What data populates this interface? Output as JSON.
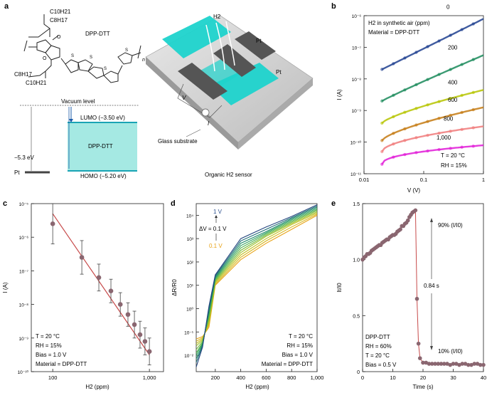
{
  "panel_a": {
    "label": "a",
    "molecule_name": "DPP-DTT",
    "side_chain_1": "C10H21",
    "side_chain_2": "C8H17",
    "subscript_n": "n",
    "vacuum_level": "Vacuum level",
    "lumo": "LUMO (−3.50 eV)",
    "homo": "HOMO (−5.20 eV)",
    "pt_workfunction": "−5.3 eV",
    "pt_label": "Pt",
    "box_label": "DPP-DTT",
    "device_h2": "H2",
    "device_pt_top": "Pt",
    "device_pt_right": "Pt",
    "device_v": "V",
    "device_i": "I",
    "glass_substrate": "Glass substrate",
    "sensor_caption": "Organic H2 sensor"
  },
  "chart_data": [
    {
      "panel": "b",
      "type": "scatter",
      "title_line1": "H2 in synthetic air (ppm)",
      "title_line2": "Material = DPP-DTT",
      "xlabel": "V (V)",
      "ylabel": "I (A)",
      "xscale": "log",
      "yscale": "log",
      "xlim": [
        0.01,
        1
      ],
      "ylim_exp": [
        -11,
        -6
      ],
      "x_ticks": [
        "0.01",
        "0.1",
        "1"
      ],
      "y_ticks": [
        "10⁻¹¹",
        "10⁻¹⁰",
        "10⁻⁹",
        "10⁻⁸",
        "10⁻⁷",
        "10⁻⁶"
      ],
      "annotation_T": "T = 20 °C",
      "annotation_RH": "RH = 15%",
      "series": [
        {
          "name": "0",
          "color": "#1f3f8f",
          "i_at_0p02V_exp": -7.7,
          "i_at_1V_exp": -6.1,
          "slope": 1.0
        },
        {
          "name": "200",
          "color": "#1a8a5a",
          "i_at_0p02V_exp": -8.7,
          "i_at_1V_exp": -7.25,
          "slope": 0.95
        },
        {
          "name": "400",
          "color": "#b6c400",
          "i_at_0p02V_exp": -9.4,
          "i_at_1V_exp": -8.35,
          "slope": 0.75
        },
        {
          "name": "600",
          "color": "#c47a12",
          "i_at_0p02V_exp": -9.95,
          "i_at_1V_exp": -8.9,
          "slope": 0.7
        },
        {
          "name": "800",
          "color": "#f07a7a",
          "i_at_0p02V_exp": -10.3,
          "i_at_1V_exp": -9.5,
          "slope": 0.55
        },
        {
          "name": "1,000",
          "color": "#e11ad7",
          "i_at_0p02V_exp": -10.7,
          "i_at_1V_exp": -10.1,
          "slope": 0.45
        }
      ]
    },
    {
      "panel": "c",
      "type": "scatter",
      "xlabel": "H2 (ppm)",
      "ylabel": "I (A)",
      "xscale": "log",
      "yscale": "log",
      "xlim": [
        60,
        1400
      ],
      "ylim_exp": [
        -10,
        -5
      ],
      "x_ticks": [
        "100",
        "1,000"
      ],
      "y_ticks": [
        "10⁻¹⁰",
        "10⁻⁹",
        "10⁻⁸",
        "10⁻⁷",
        "10⁻⁶",
        "10⁻⁵"
      ],
      "x": [
        100,
        200,
        300,
        400,
        500,
        600,
        700,
        800,
        900,
        1000
      ],
      "y_exp": [
        -5.6,
        -6.6,
        -7.2,
        -7.6,
        -8.0,
        -8.3,
        -8.6,
        -8.9,
        -9.1,
        -9.4
      ],
      "err_exp": [
        0.6,
        0.5,
        0.4,
        0.35,
        0.35,
        0.35,
        0.4,
        0.4,
        0.4,
        0.4
      ],
      "fit_exp": [
        [
          100,
          -5.3
        ],
        [
          1000,
          -9.5
        ]
      ],
      "annotations": [
        "T = 20 °C",
        "RH = 15%",
        "Bias = 1.0 V",
        "Material = DPP-DTT"
      ]
    },
    {
      "panel": "d",
      "type": "line",
      "xlabel": "H2 (ppm)",
      "ylabel": "ΔR/R0",
      "yscale": "log",
      "xlim": [
        50,
        1000
      ],
      "ylim_exp": [
        -2.7,
        4.5
      ],
      "x_ticks": [
        "200",
        "400",
        "600",
        "800",
        "1,000"
      ],
      "y_ticks": [
        "10⁻²",
        "10⁻¹",
        "10⁰",
        "10¹",
        "10²",
        "10³",
        "10⁴"
      ],
      "legend_top": "1 V",
      "legend_step": "ΔV = 0.1 V",
      "legend_bottom": "0.1 V",
      "annotations": [
        "T = 20 °C",
        "RH = 15%",
        "Bias = 1.0 V",
        "Material = DPP-DTT"
      ],
      "x": [
        50,
        100,
        150,
        200,
        400,
        600,
        800,
        1000
      ],
      "series": [
        {
          "name": "0.1 V",
          "color": "#e8a317",
          "y_exp": [
            -1.3,
            -1.2,
            -0.8,
            1.0,
            2.1,
            2.8,
            3.4,
            4.0
          ]
        },
        {
          "name": "0.2 V",
          "color": "#d6b51a",
          "y_exp": [
            -1.4,
            -1.25,
            -0.7,
            1.05,
            2.2,
            2.9,
            3.5,
            4.05
          ]
        },
        {
          "name": "0.3 V",
          "color": "#c3c01f",
          "y_exp": [
            -1.5,
            -1.3,
            -0.6,
            1.1,
            2.3,
            3.0,
            3.6,
            4.1
          ]
        },
        {
          "name": "0.4 V",
          "color": "#9fc02a",
          "y_exp": [
            -1.6,
            -1.35,
            -0.5,
            1.15,
            2.4,
            3.1,
            3.65,
            4.15
          ]
        },
        {
          "name": "0.5 V",
          "color": "#74b93a",
          "y_exp": [
            -1.75,
            -1.4,
            -0.4,
            1.2,
            2.5,
            3.15,
            3.7,
            4.2
          ]
        },
        {
          "name": "0.6 V",
          "color": "#4fb04c",
          "y_exp": [
            -1.9,
            -1.45,
            -0.3,
            1.25,
            2.6,
            3.2,
            3.75,
            4.25
          ]
        },
        {
          "name": "0.7 V",
          "color": "#2fa05e",
          "y_exp": [
            -2.0,
            -1.5,
            -0.2,
            1.3,
            2.7,
            3.25,
            3.8,
            4.3
          ]
        },
        {
          "name": "0.8 V",
          "color": "#1e8a6a",
          "y_exp": [
            -2.15,
            -1.55,
            -0.1,
            1.35,
            2.8,
            3.3,
            3.85,
            4.35
          ]
        },
        {
          "name": "0.9 V",
          "color": "#1b6a74",
          "y_exp": [
            -2.3,
            -1.6,
            0.0,
            1.4,
            2.9,
            3.4,
            3.9,
            4.4
          ]
        },
        {
          "name": "1 V",
          "color": "#23457e",
          "y_exp": [
            -2.5,
            -1.65,
            0.1,
            1.45,
            3.0,
            3.5,
            3.95,
            4.45
          ]
        }
      ]
    },
    {
      "panel": "e",
      "type": "line",
      "xlabel": "Time (s)",
      "ylabel": "It/I0",
      "xlim": [
        0,
        40
      ],
      "ylim": [
        0,
        1.5
      ],
      "x_ticks": [
        "0",
        "10",
        "20",
        "30",
        "40"
      ],
      "y_ticks": [
        "0",
        "0.5",
        "1.0",
        "1.5"
      ],
      "label_90": "90% (I/I0)",
      "label_10": "10% (I/I0)",
      "response_time": "0.84 s",
      "annotations": [
        "DPP-DTT",
        "RH = 60%",
        "T = 20 °C",
        "Bias = 0.5 V"
      ],
      "x": [
        0,
        0.5,
        1,
        1.5,
        2,
        2.5,
        3,
        3.5,
        4,
        4.5,
        5,
        5.5,
        6,
        6.5,
        7,
        7.5,
        8,
        8.5,
        9,
        9.5,
        10,
        10.5,
        11,
        11.5,
        12,
        12.5,
        13,
        13.5,
        14,
        14.5,
        15,
        15.5,
        16,
        16.5,
        17,
        17.5,
        18,
        18.5,
        19,
        20,
        21,
        22,
        23,
        24,
        25,
        26,
        27,
        28,
        29,
        30,
        31,
        32,
        33,
        34,
        35,
        36,
        37,
        38,
        39,
        40
      ],
      "y": [
        1.0,
        1.02,
        1.03,
        1.05,
        1.05,
        1.06,
        1.08,
        1.09,
        1.1,
        1.11,
        1.12,
        1.13,
        1.13,
        1.15,
        1.16,
        1.17,
        1.18,
        1.18,
        1.2,
        1.21,
        1.22,
        1.22,
        1.23,
        1.25,
        1.26,
        1.27,
        1.3,
        1.3,
        1.32,
        1.33,
        1.35,
        1.38,
        1.4,
        1.42,
        1.43,
        1.44,
        0.65,
        0.25,
        0.12,
        0.08,
        0.08,
        0.07,
        0.07,
        0.07,
        0.07,
        0.07,
        0.07,
        0.07,
        0.06,
        0.07,
        0.07,
        0.06,
        0.07,
        0.07,
        0.06,
        0.06,
        0.07,
        0.07,
        0.06,
        0.06
      ]
    }
  ],
  "panel_labels": {
    "b": "b",
    "c": "c",
    "d": "d",
    "e": "e"
  }
}
